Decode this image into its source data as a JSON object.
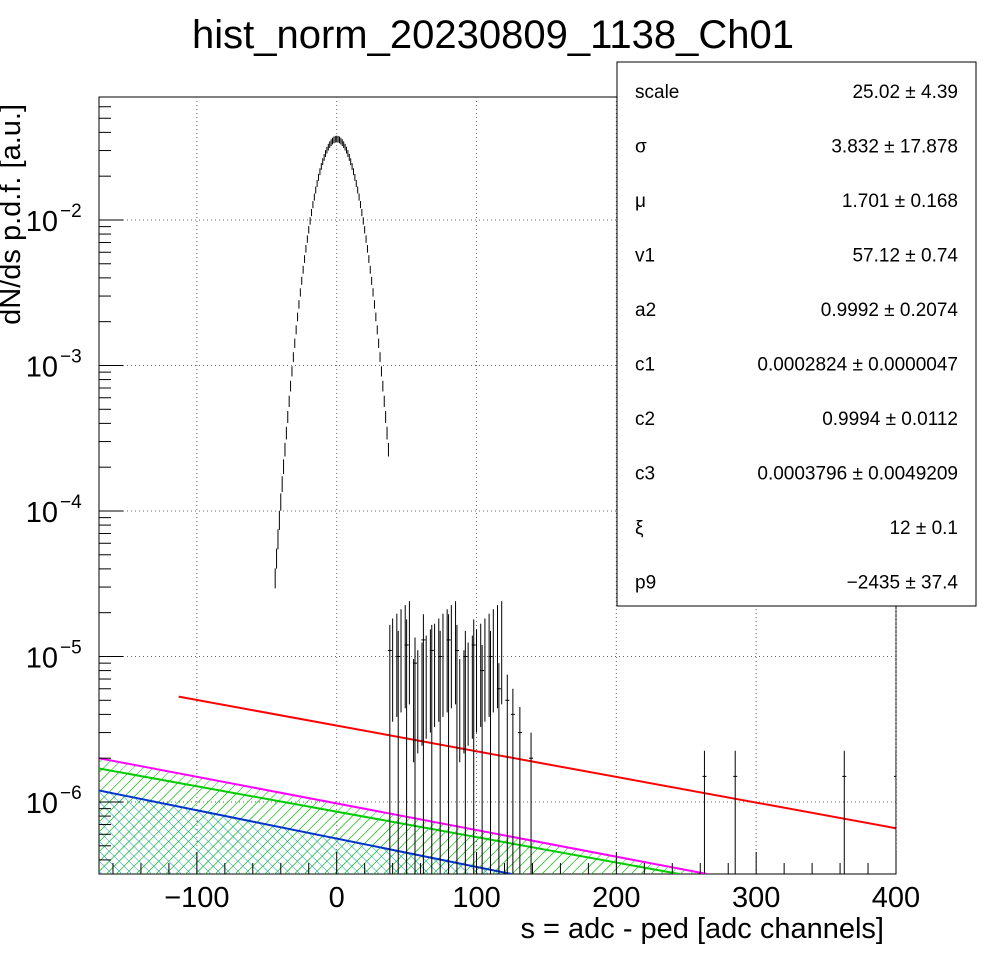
{
  "chart_data": {
    "type": "scatter",
    "title": "hist_norm_20230809_1138_Ch01",
    "xlabel": "s = adc - ped [adc channels]",
    "ylabel": "dN/ds p.d.f. [a.u.]",
    "xlim": [
      -170,
      400
    ],
    "ylim": [
      3.2e-07,
      0.07
    ],
    "yscale": "log",
    "grid": true,
    "x_ticks": [
      -100,
      0,
      100,
      200,
      300,
      400
    ],
    "y_ticks": [
      {
        "value": 1e-06,
        "base": "10",
        "exp": "−6"
      },
      {
        "value": 1e-05,
        "base": "10",
        "exp": "−5"
      },
      {
        "value": 0.0001,
        "base": "10",
        "exp": "−4"
      },
      {
        "value": 0.001,
        "base": "10",
        "exp": "−3"
      },
      {
        "value": 0.01,
        "base": "10",
        "exp": "−2"
      }
    ],
    "histogram_peak": {
      "mean": 0,
      "sigma": 11.8,
      "amplitude": 0.036,
      "x_range": [
        -44,
        37
      ]
    },
    "histogram_tail": {
      "x": [
        38,
        44,
        50,
        56,
        62,
        68,
        74,
        80,
        86,
        92,
        98,
        104,
        110,
        116,
        122,
        126,
        131,
        139,
        263,
        285,
        363,
        400
      ],
      "y": [
        1.1e-05,
        1e-05,
        1.2e-05,
        9e-06,
        1.3e-05,
        1.1e-05,
        1e-05,
        1.3e-05,
        1.1e-05,
        1e-05,
        1.2e-05,
        8e-06,
        1e-05,
        6e-06,
        5e-06,
        4e-06,
        3e-06,
        2e-06,
        1.5e-06,
        1.5e-06,
        1.5e-06,
        1.5e-06
      ]
    },
    "curves": [
      {
        "color": "#ff0000",
        "x": [
          -113,
          400
        ],
        "y": [
          5.3e-06,
          6.6e-07
        ]
      },
      {
        "color": "#ff00ff",
        "x": [
          -170,
          265
        ],
        "y": [
          2e-06,
          3.2e-07
        ],
        "hatched": true
      },
      {
        "color": "#00cc00",
        "x": [
          -170,
          245
        ],
        "y": [
          1.7e-06,
          3.2e-07
        ],
        "hatched": true
      },
      {
        "color": "#0033cc",
        "x": [
          -170,
          125
        ],
        "y": [
          1.2e-06,
          3.2e-07
        ],
        "hatched": true
      }
    ],
    "stats_box": {
      "placement": "top-right",
      "rows": [
        {
          "name": "scale",
          "value": "25.02 ± 4.39"
        },
        {
          "name": "σ",
          "value": "3.832 ± 17.878"
        },
        {
          "name": "μ",
          "value": "1.701 ± 0.168"
        },
        {
          "name": "v1",
          "value": "57.12 ± 0.74"
        },
        {
          "name": "a2",
          "value": "0.9992 ± 0.2074"
        },
        {
          "name": "c1",
          "value": "0.0002824 ± 0.0000047"
        },
        {
          "name": "c2",
          "value": "0.9994 ± 0.0112"
        },
        {
          "name": "c3",
          "value": "0.0003796 ± 0.0049209"
        },
        {
          "name": "ξ",
          "value": "12 ± 0.1"
        },
        {
          "name": "p9",
          "value": "−2435 ± 37.4"
        }
      ]
    }
  }
}
